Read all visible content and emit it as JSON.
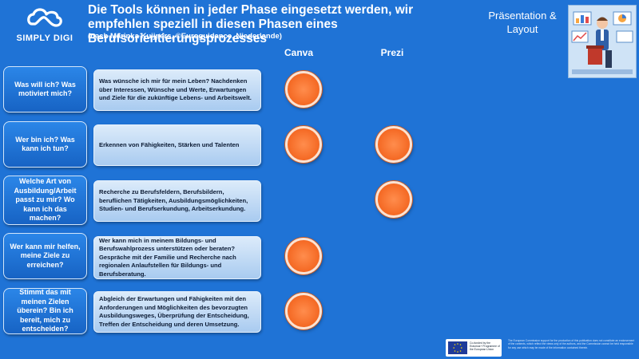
{
  "logo": {
    "text": "SIMPLY DIGI"
  },
  "header": {
    "title": "Die Tools können in jeder Phase eingesetzt werden, wir empfehlen speziell in diesen Phasen eines Berufsorientierungsprozesses",
    "subtitle": "(nach Marinka Kuijpers, ©Euroguidance, Niederlande)"
  },
  "section_label": "Präsentation & Layout",
  "columns": [
    "Canva",
    "Prezi"
  ],
  "rows": [
    {
      "question": "Was will ich? Was motiviert mich?",
      "description": "Was wünsche ich mir für mein Leben? Nachdenken über Interessen, Wünsche und Werte, Erwartungen und Ziele für die zukünftige Lebens- und Arbeitswelt.",
      "canva": true,
      "prezi": false
    },
    {
      "question": "Wer bin ich? Was kann ich tun?",
      "description": "Erkennen von Fähigkeiten, Stärken und Talenten",
      "canva": true,
      "prezi": true
    },
    {
      "question": "Welche Art von Ausbildung/Arbeit passt zu mir? Wo kann ich das machen?",
      "description": "Recherche zu Berufsfeldern, Berufsbildern, beruflichen Tätigkeiten, Ausbildungsmöglichkeiten, Studien- und Berufserkundung, Arbeitserkundung.",
      "canva": false,
      "prezi": true
    },
    {
      "question": "Wer kann mir helfen, meine Ziele zu erreichen?",
      "description": "Wer kann mich in meinem Bildungs- und Berufswahlprozess unterstützen oder beraten? Gespräche mit der Familie und Recherche nach regionalen Anlaufstellen für Bildungs- und Berufsberatung.",
      "canva": true,
      "prezi": false
    },
    {
      "question": "Stimmt das mit meinen Zielen überein? Bin ich bereit, mich zu entscheiden?",
      "description": "Abgleich der Erwartungen und Fähigkeiten mit den Anforderungen und Möglichkeiten des bevorzugten Ausbildungsweges, Überprüfung der Entscheidung, Treffen der Entscheidung und deren Umsetzung.",
      "canva": true,
      "prezi": false
    }
  ],
  "footer": {
    "eu_logo_text": "Co-funded by the Erasmus+ Programme of the European Union",
    "disclaimer": "The European Commission support for the production of this publication does not constitute an endorsement of the contents, which reflect the views only of the authors, and the Commission cannot be held responsible for any use which may be made of the information contained therein."
  },
  "colors": {
    "background": "#1f73d6",
    "dot": "#f56b26",
    "description_box": "#cfe2f8"
  }
}
